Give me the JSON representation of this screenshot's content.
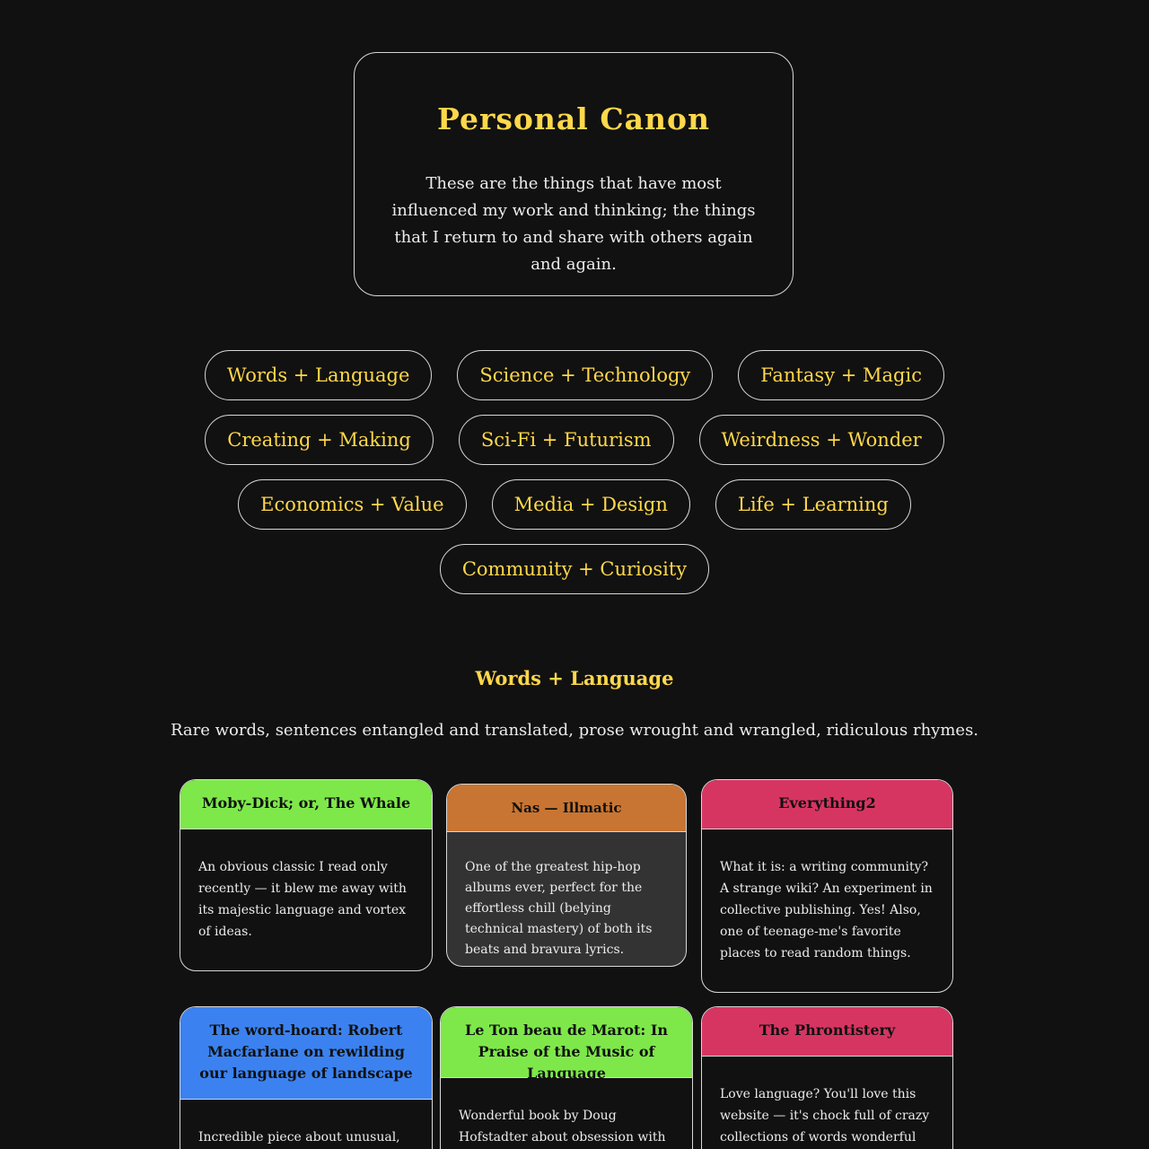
{
  "intro": {
    "title": "Personal Canon",
    "text": "These are the things that have most influenced my work and thinking; the things that I return to and share with others again and again."
  },
  "tags": [
    [
      "Words + Language",
      "Science + Technology",
      "Fantasy + Magic"
    ],
    [
      "Creating + Making",
      "Sci-Fi + Futurism",
      "Weirdness + Wonder"
    ],
    [
      "Economics + Value",
      "Media + Design",
      "Life + Learning"
    ],
    [
      "Community + Curiosity"
    ]
  ],
  "section": {
    "title": "Words + Language",
    "description": "Rare words, sentences entangled and translated, prose wrought and wrangled, ridiculous rhymes."
  },
  "cards": [
    {
      "title": "Moby-Dick; or, The Whale",
      "body": "An obvious classic I read only recently — it blew me away with its majestic language and vortex of ideas.",
      "color": "#7ee84a"
    },
    {
      "title": "Nas — Illmatic",
      "body": "One of the greatest hip-hop albums ever, perfect for the effortless chill (belying technical mastery) of both its beats and bravura lyrics.",
      "color": "#c87533"
    },
    {
      "title": "Everything2",
      "body": "What it is: a writing community? A strange wiki? An experiment in collective publishing. Yes! Also, one of teenage-me's favorite places to read random things.",
      "color": "#d63562"
    },
    {
      "title": "The word-hoard: Robert Macfarlane on rewilding our language of landscape",
      "body": "Incredible piece about unusual,",
      "color": "#3b82f0"
    },
    {
      "title": "Le Ton beau de Marot: In Praise of the Music of Language",
      "body": "Wonderful book by Doug Hofstadter about obsession with language and",
      "color": "#7ee84a"
    },
    {
      "title": "The Phrontistery",
      "body": "Love language? You'll love this website — it's chock full of crazy collections of words wonderful and",
      "color": "#d63562"
    }
  ]
}
